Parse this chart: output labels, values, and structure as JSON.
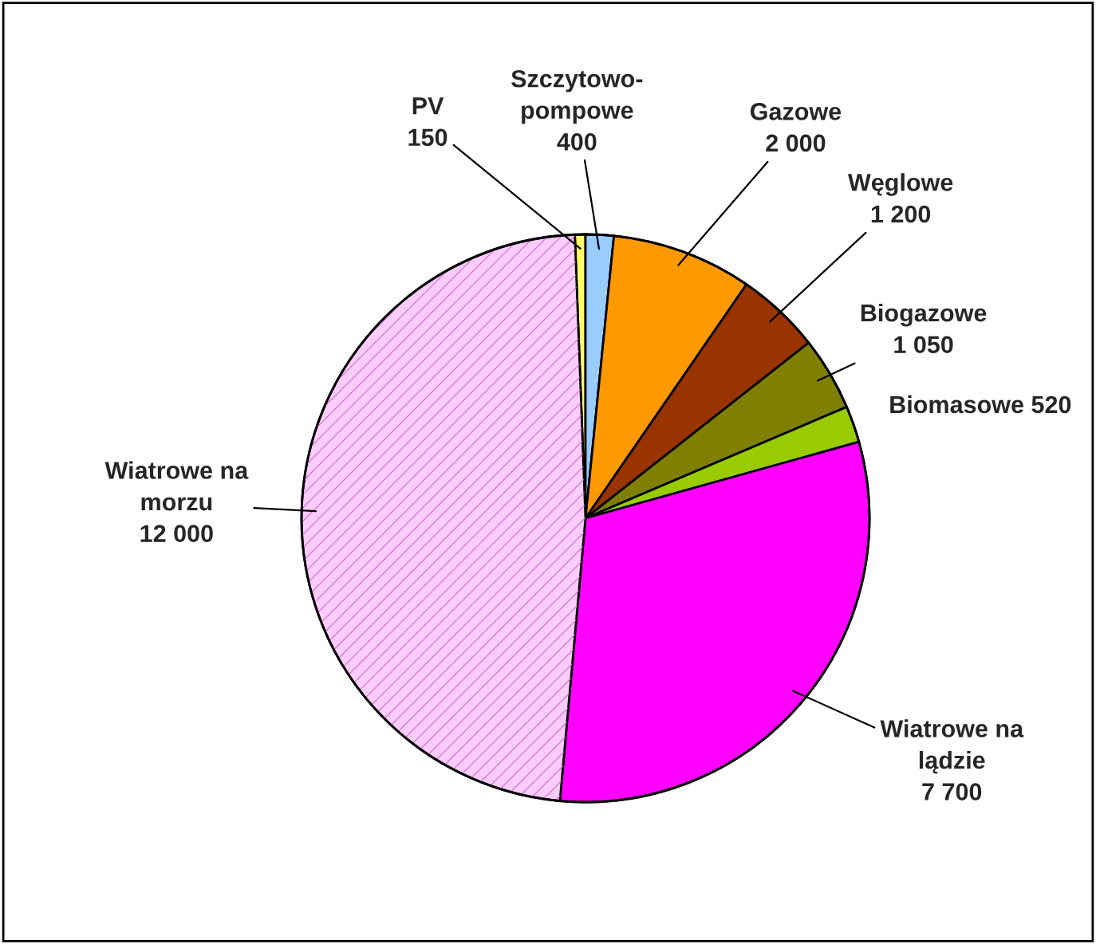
{
  "chart_data": {
    "type": "pie",
    "categories": [
      "PV",
      "Szczytowo-pompowe",
      "Gazowe",
      "Węglowe",
      "Biogazowe",
      "Biomasowe",
      "Wiatrowe na lądzie",
      "Wiatrowe na morzu"
    ],
    "values": [
      150,
      400,
      2000,
      1200,
      1050,
      520,
      7700,
      12000
    ],
    "value_labels": [
      "150",
      "400",
      "2 000",
      "1 200",
      "1 050",
      "520",
      "7 700",
      "12 000"
    ],
    "colors": [
      "#ffff66",
      "#99ccff",
      "#ff9900",
      "#993300",
      "#808000",
      "#99cc00",
      "#ff00ff",
      "#ffccff"
    ],
    "legend": false
  }
}
